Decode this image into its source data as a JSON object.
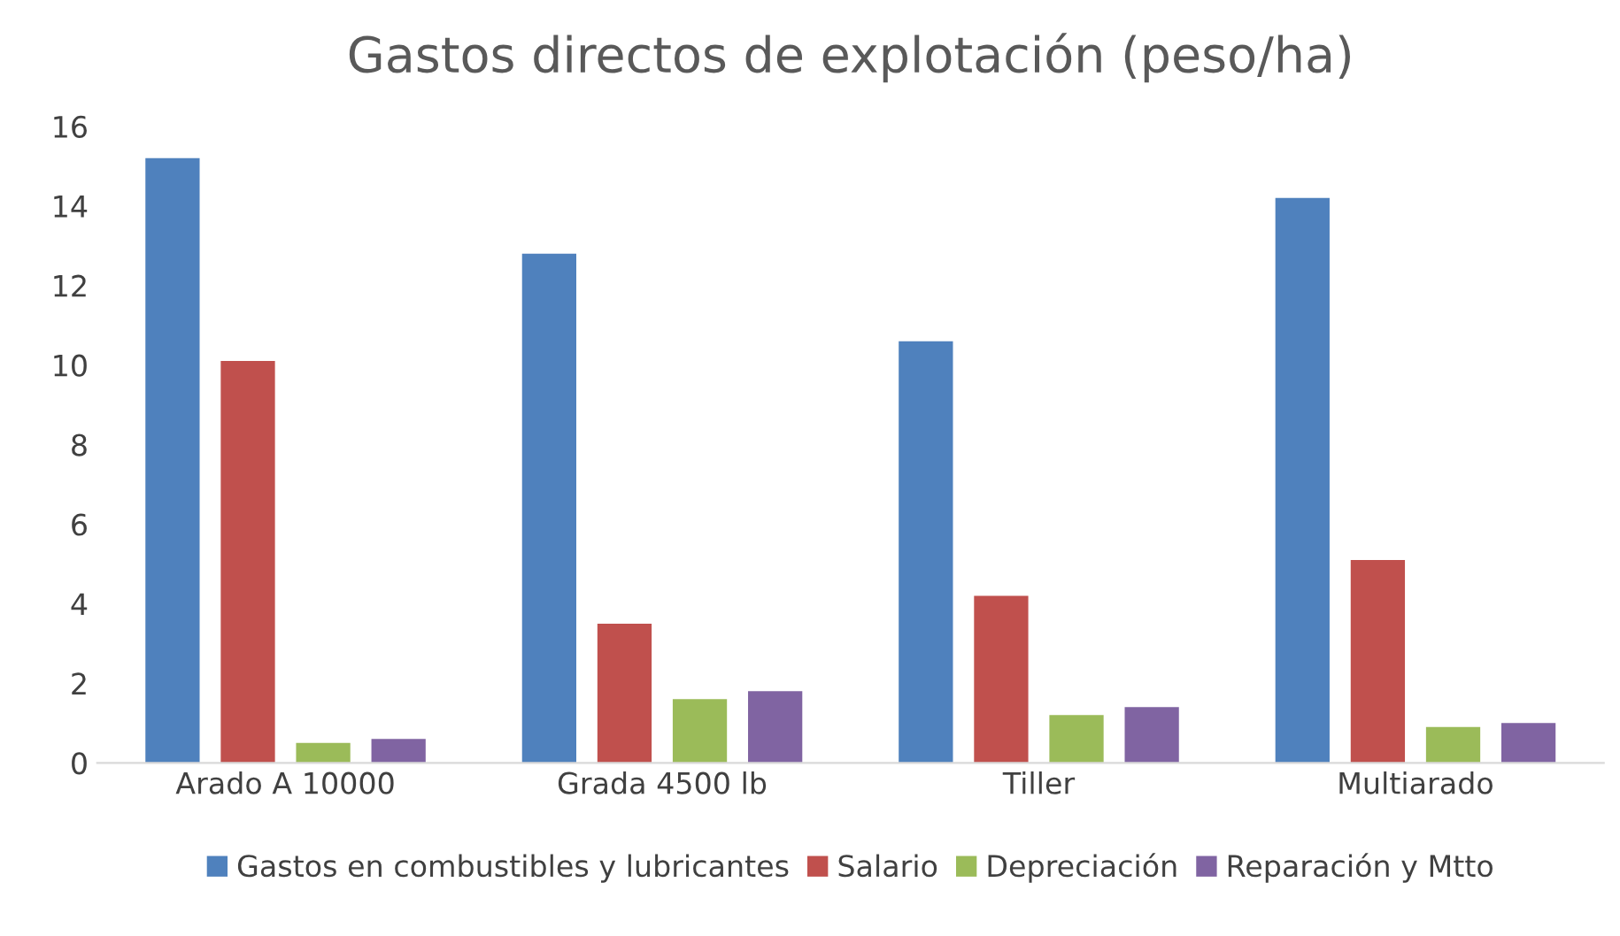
{
  "chart_data": {
    "type": "bar",
    "title": "Gastos directos de explotación (peso/ha)",
    "categories": [
      "Arado A 10000",
      "Grada 4500 lb",
      "Tiller",
      "Multiarado"
    ],
    "series": [
      {
        "name": "Gastos en combustibles y lubricantes",
        "color": "#4f81bd",
        "values": [
          15.2,
          12.8,
          10.6,
          14.2
        ]
      },
      {
        "name": "Salario",
        "color": "#c0504d",
        "values": [
          10.1,
          3.5,
          4.2,
          5.1
        ]
      },
      {
        "name": "Depreciación",
        "color": "#9bbb59",
        "values": [
          0.5,
          1.6,
          1.2,
          0.9
        ]
      },
      {
        "name": "Reparación y Mtto",
        "color": "#8064a2",
        "values": [
          0.6,
          1.8,
          1.4,
          1.0
        ]
      }
    ],
    "ylim": [
      0,
      16
    ],
    "yticks": [
      0,
      2,
      4,
      6,
      8,
      10,
      12,
      14,
      16
    ],
    "grid": false,
    "legend": "bottom"
  }
}
